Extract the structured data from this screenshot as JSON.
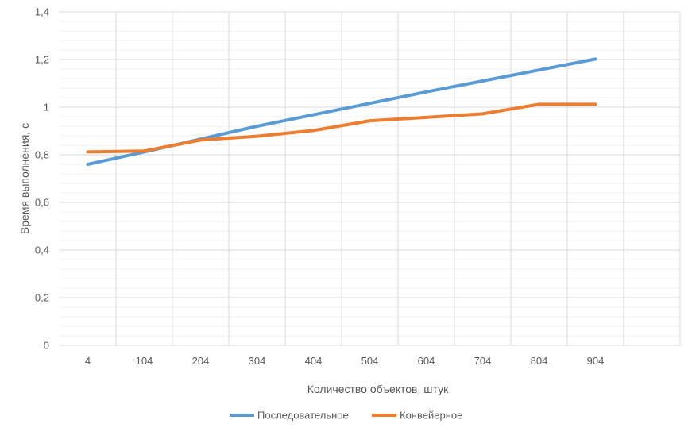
{
  "chart_data": {
    "type": "line",
    "title": "",
    "xlabel": "Количество объектов, штук",
    "ylabel": "Время выполнения, с",
    "categories": [
      "4",
      "104",
      "204",
      "304",
      "404",
      "504",
      "604",
      "704",
      "804",
      "904"
    ],
    "x_extra_slots": 1,
    "ylim": [
      0,
      1.4
    ],
    "ytick_values": [
      0,
      0.2,
      0.4,
      0.6,
      0.8,
      1,
      1.2,
      1.4
    ],
    "ytick_labels": [
      "0",
      "0,2",
      "0,4",
      "0,6",
      "0,8",
      "1",
      "1,2",
      "1,4"
    ],
    "ymajor_step": 0.2,
    "yminor_step": 0.04,
    "grid": true,
    "legend_position": "bottom",
    "series": [
      {
        "name": "Последовательное",
        "color": "#5b9bd5",
        "values": [
          0.76,
          0.812,
          0.866,
          0.92,
          0.968,
          1.016,
          1.064,
          1.11,
          1.156,
          1.202
        ]
      },
      {
        "name": "Конвейерное",
        "color": "#ed7d31",
        "values": [
          0.812,
          0.816,
          0.862,
          0.878,
          0.902,
          0.943,
          0.957,
          0.972,
          1.012,
          1.012
        ]
      }
    ]
  }
}
